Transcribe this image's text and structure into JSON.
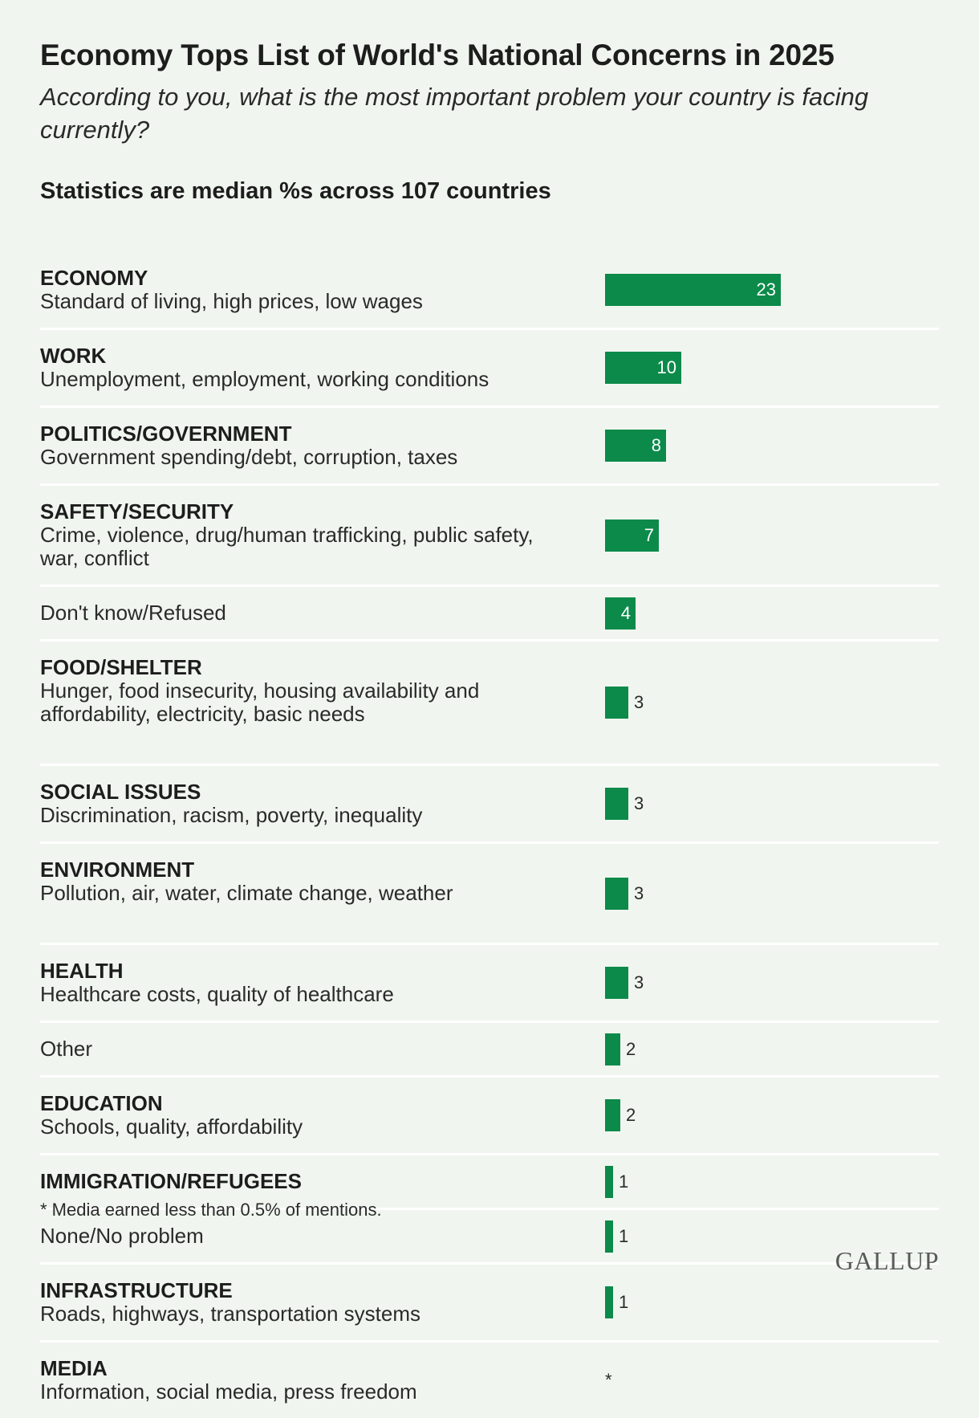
{
  "title": "Economy Tops List of World's National Concerns in 2025",
  "subtitle": "According to you, what is the most important problem your country is facing currently?",
  "note": "Statistics are median %s across 107 countries",
  "footnote": "* Media earned less than 0.5% of mentions.",
  "logo": "GALLUP",
  "colors": {
    "bar": "#0b8a4a",
    "background": "#f0f6ef",
    "divider": "#ffffff"
  },
  "chart_data": {
    "type": "bar",
    "orientation": "horizontal",
    "categories": [
      {
        "name": "ECONOMY",
        "description": "Standard of living, high prices, low wages",
        "value": 23,
        "display": "23"
      },
      {
        "name": "WORK",
        "description": "Unemployment, employment, working conditions",
        "value": 10,
        "display": "10"
      },
      {
        "name": "POLITICS/GOVERNMENT",
        "description": "Government spending/debt, corruption, taxes",
        "value": 8,
        "display": "8"
      },
      {
        "name": "SAFETY/SECURITY",
        "description": "Crime, violence, drug/human trafficking, public safety, war, conflict",
        "value": 7,
        "display": "7"
      },
      {
        "name": "",
        "description": "Don't know/Refused",
        "value": 4,
        "display": "4"
      },
      {
        "name": "FOOD/SHELTER",
        "description": "Hunger, food insecurity, housing availability and affordability, electricity, basic needs",
        "value": 3,
        "display": "3"
      },
      {
        "name": "SOCIAL ISSUES",
        "description": "Discrimination, racism, poverty, inequality",
        "value": 3,
        "display": "3"
      },
      {
        "name": "ENVIRONMENT",
        "description": "Pollution, air, water, climate change, weather",
        "value": 3,
        "display": "3"
      },
      {
        "name": "HEALTH",
        "description": "Healthcare costs, quality of healthcare",
        "value": 3,
        "display": "3"
      },
      {
        "name": "",
        "description": "Other",
        "value": 2,
        "display": "2"
      },
      {
        "name": "EDUCATION",
        "description": "Schools, quality, affordability",
        "value": 2,
        "display": "2"
      },
      {
        "name": "IMMIGRATION/REFUGEES",
        "description": "",
        "value": 1,
        "display": "1"
      },
      {
        "name": "",
        "description": "None/No problem",
        "value": 1,
        "display": "1"
      },
      {
        "name": "INFRASTRUCTURE",
        "description": "Roads, highways, transportation systems",
        "value": 1,
        "display": "1"
      },
      {
        "name": "MEDIA",
        "description": "Information, social media, press freedom",
        "value": null,
        "display": "*"
      }
    ]
  }
}
